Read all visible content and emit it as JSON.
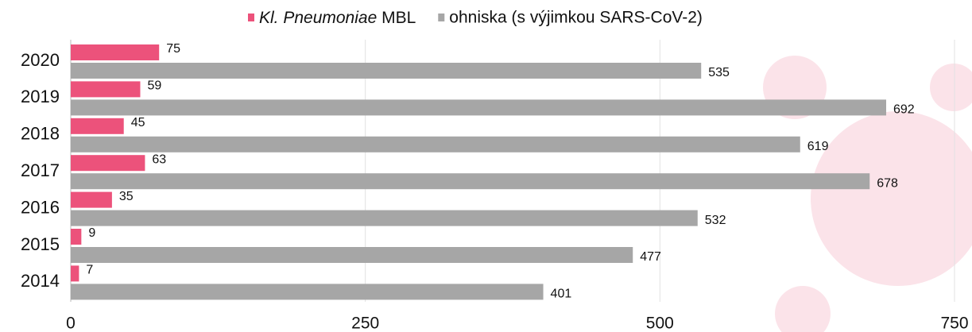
{
  "chart_data": {
    "type": "hbar",
    "categories": [
      "2020",
      "2019",
      "2018",
      "2017",
      "2016",
      "2015",
      "2014"
    ],
    "series": [
      {
        "name": "Kl. Pneumoniae MBL",
        "color": "#ec527b",
        "values": [
          75,
          59,
          45,
          63,
          35,
          9,
          7
        ]
      },
      {
        "name": "ohniska (s výjimkou SARS-CoV-2)",
        "color": "#a6a6a6",
        "values": [
          535,
          692,
          619,
          678,
          532,
          477,
          401
        ]
      }
    ],
    "xlim": [
      0,
      750
    ],
    "xticks": [
      0,
      250,
      500,
      750
    ],
    "grid": true,
    "legend": "top"
  }
}
